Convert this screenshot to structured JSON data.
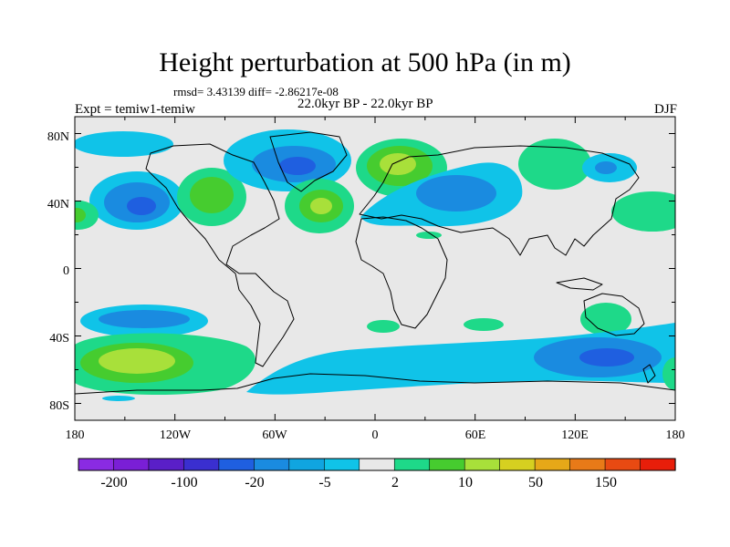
{
  "title": "Height perturbation at 500 hPa (in m)",
  "stats": "rmsd= 3.43139  diff= -2.86217e-08",
  "experiment": "Expt = temiw1-temiw",
  "period": "22.0kyr BP - 22.0kyr BP",
  "season": "DJF",
  "lat_labels": [
    "80N",
    "40N",
    "0",
    "40S",
    "80S"
  ],
  "lon_labels": [
    "180",
    "120W",
    "60W",
    "0",
    "60E",
    "120E",
    "180"
  ],
  "colorbar": {
    "colors": [
      "#8a2be2",
      "#7a1fd6",
      "#5a1fc8",
      "#3a2fd0",
      "#1f5fe0",
      "#1a8be0",
      "#10a5e0",
      "#10c3e8",
      "#e8e8e8",
      "#1ed989",
      "#46cc2f",
      "#a8e03a",
      "#d6d020",
      "#e6a818",
      "#e87a18",
      "#e84a12",
      "#e81e0a"
    ],
    "labels": [
      "-200",
      "-100",
      "-20",
      "-5",
      "2",
      "10",
      "50",
      "150"
    ]
  },
  "map_data": {
    "projection": "cylindrical equidistant",
    "lon_range": [
      -180,
      180
    ],
    "lat_range": [
      -90,
      90
    ],
    "background": "#e8e8e8",
    "anomaly_patches": [
      {
        "lon": -162,
        "lat": 80,
        "level": "negative",
        "fill": "#10c3e8"
      },
      {
        "lon": -140,
        "lat": 40,
        "level": "negative",
        "fill": "#1a8be0"
      },
      {
        "lon": -95,
        "lat": 46,
        "level": "positive",
        "fill": "#46cc2f"
      },
      {
        "lon": -55,
        "lat": 65,
        "level": "negative",
        "fill": "#1a8be0"
      },
      {
        "lon": -30,
        "lat": 40,
        "level": "positive",
        "fill": "#a8e03a"
      },
      {
        "lon": 20,
        "lat": 65,
        "level": "positive",
        "fill": "#a8e03a"
      },
      {
        "lon": 55,
        "lat": 45,
        "level": "negative",
        "fill": "#10a5e0"
      },
      {
        "lon": 115,
        "lat": 65,
        "level": "positive",
        "fill": "#1ed989"
      },
      {
        "lon": 160,
        "lat": 40,
        "level": "positive",
        "fill": "#1ed989"
      },
      {
        "lon": -130,
        "lat": -30,
        "level": "negative",
        "fill": "#10a5e0"
      },
      {
        "lon": -145,
        "lat": -58,
        "level": "positive",
        "fill": "#a8e03a"
      },
      {
        "lon": 65,
        "lat": -62,
        "level": "negative",
        "fill": "#10a5e0"
      },
      {
        "lon": 120,
        "lat": -55,
        "level": "negative",
        "fill": "#1a8be0"
      },
      {
        "lon": 150,
        "lat": -30,
        "level": "positive",
        "fill": "#1ed989"
      },
      {
        "lon": 25,
        "lat": -35,
        "level": "positive",
        "fill": "#1ed989"
      }
    ]
  }
}
